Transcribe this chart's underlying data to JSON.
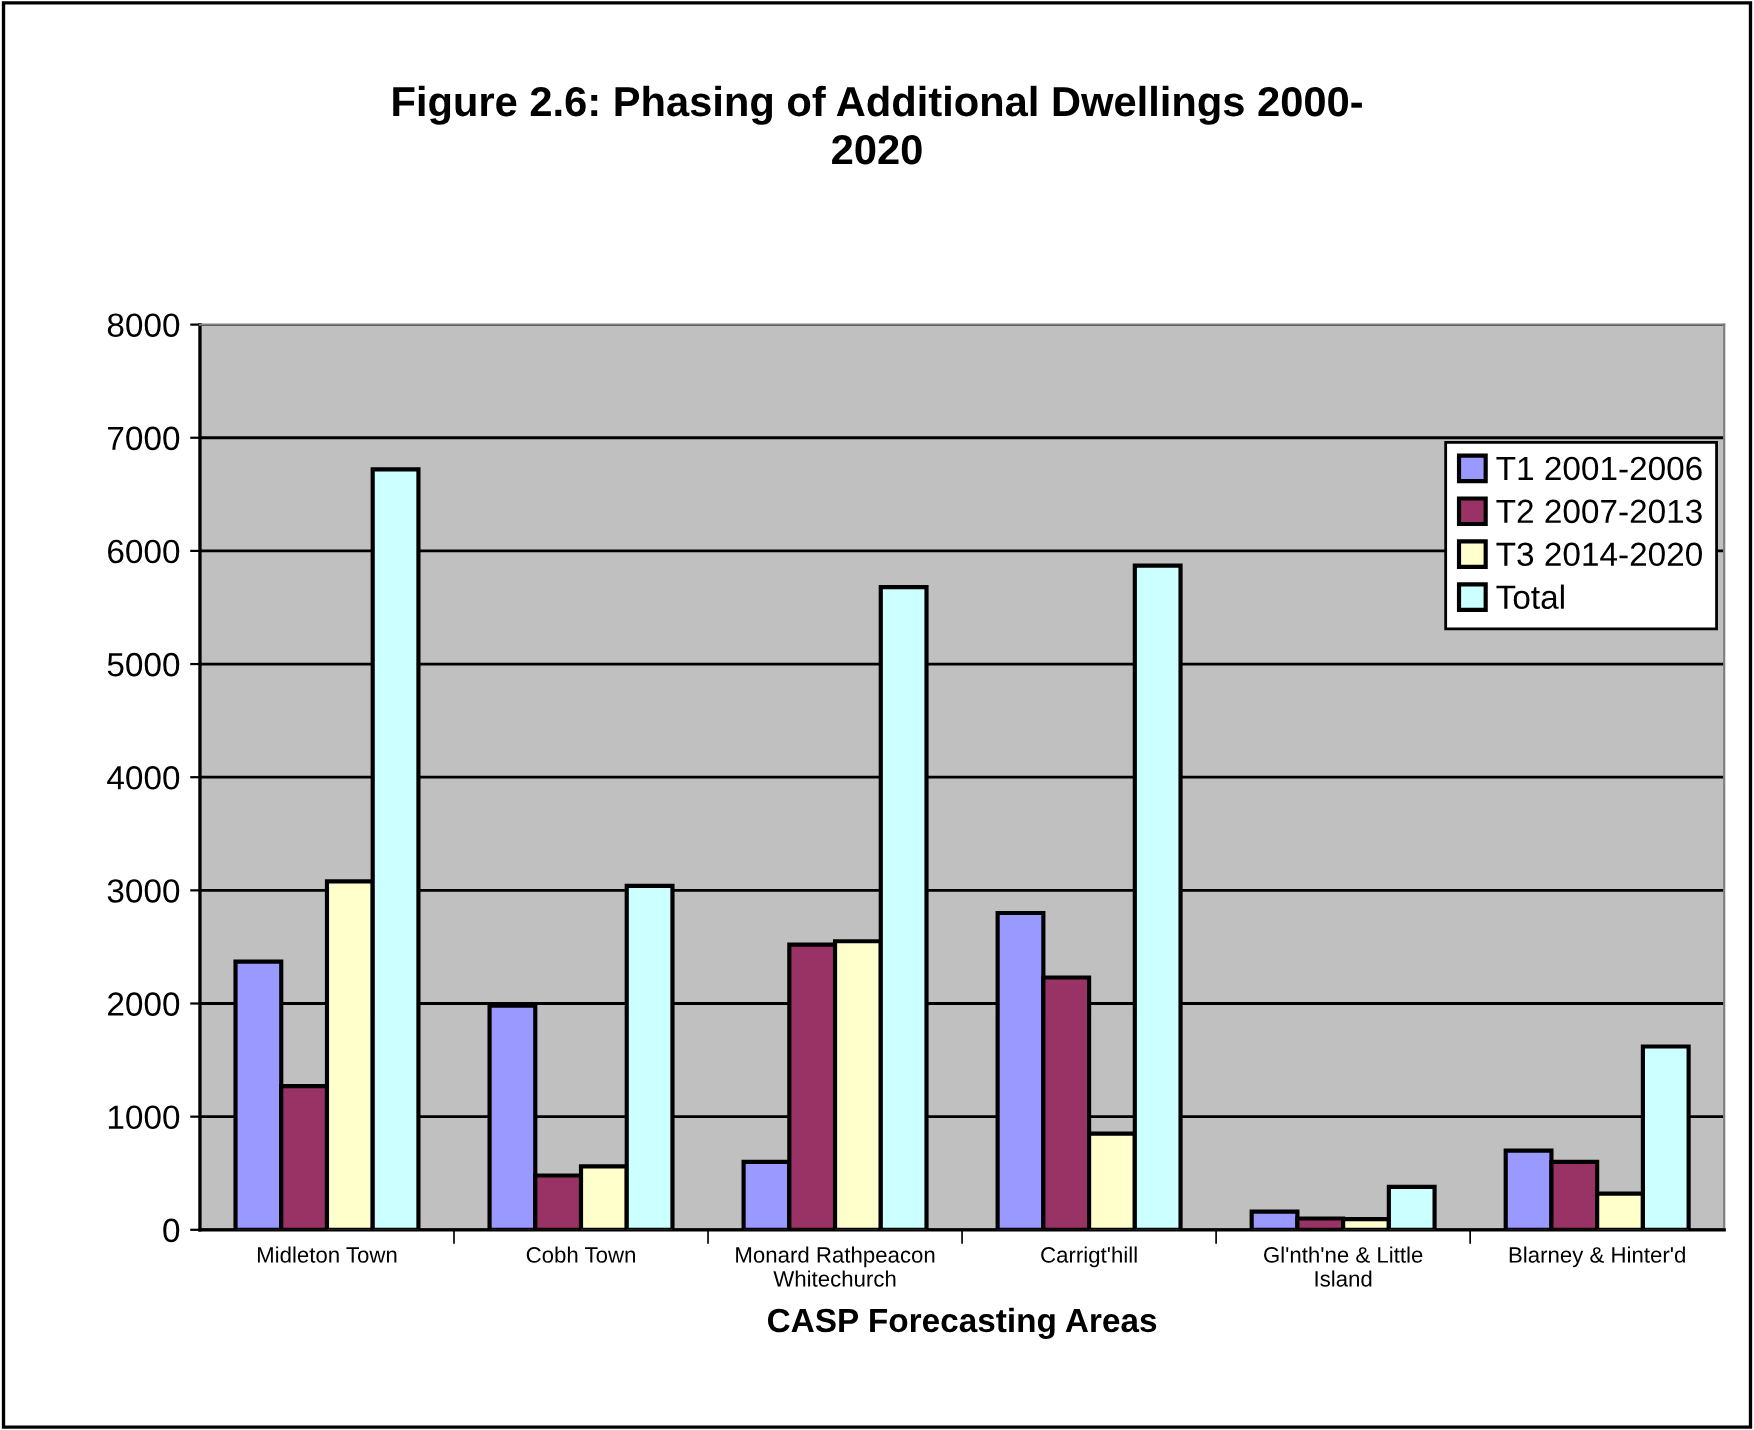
{
  "chart_data": {
    "type": "bar",
    "title": "Figure 2.6: Phasing of Additional Dwellings 2000-\n2020",
    "xlabel": "CASP Forecasting Areas",
    "categories": [
      "Midleton Town",
      "Cobh Town",
      "Monard Rathpeacon\nWhitechurch",
      "Carrigt'hill",
      "Gl'nth'ne & Little\nIsland",
      "Blarney & Hinter'd"
    ],
    "series": [
      {
        "name": "T1 2001-2006",
        "color": "#9999ff",
        "values": [
          2370,
          1980,
          600,
          2800,
          160,
          700
        ]
      },
      {
        "name": "T2 2007-2013",
        "color": "#993366",
        "values": [
          1270,
          480,
          2520,
          2230,
          100,
          600
        ]
      },
      {
        "name": "T3 2014-2020",
        "color": "#ffffcc",
        "values": [
          3080,
          560,
          2550,
          850,
          95,
          320
        ]
      },
      {
        "name": "Total",
        "color": "#ccffff",
        "values": [
          6720,
          3040,
          5680,
          5870,
          380,
          1620
        ]
      }
    ],
    "ylim": [
      0,
      8000
    ],
    "yticks": [
      0,
      1000,
      2000,
      3000,
      4000,
      5000,
      6000,
      7000,
      8000
    ],
    "grid": "y",
    "legend": "top right"
  }
}
